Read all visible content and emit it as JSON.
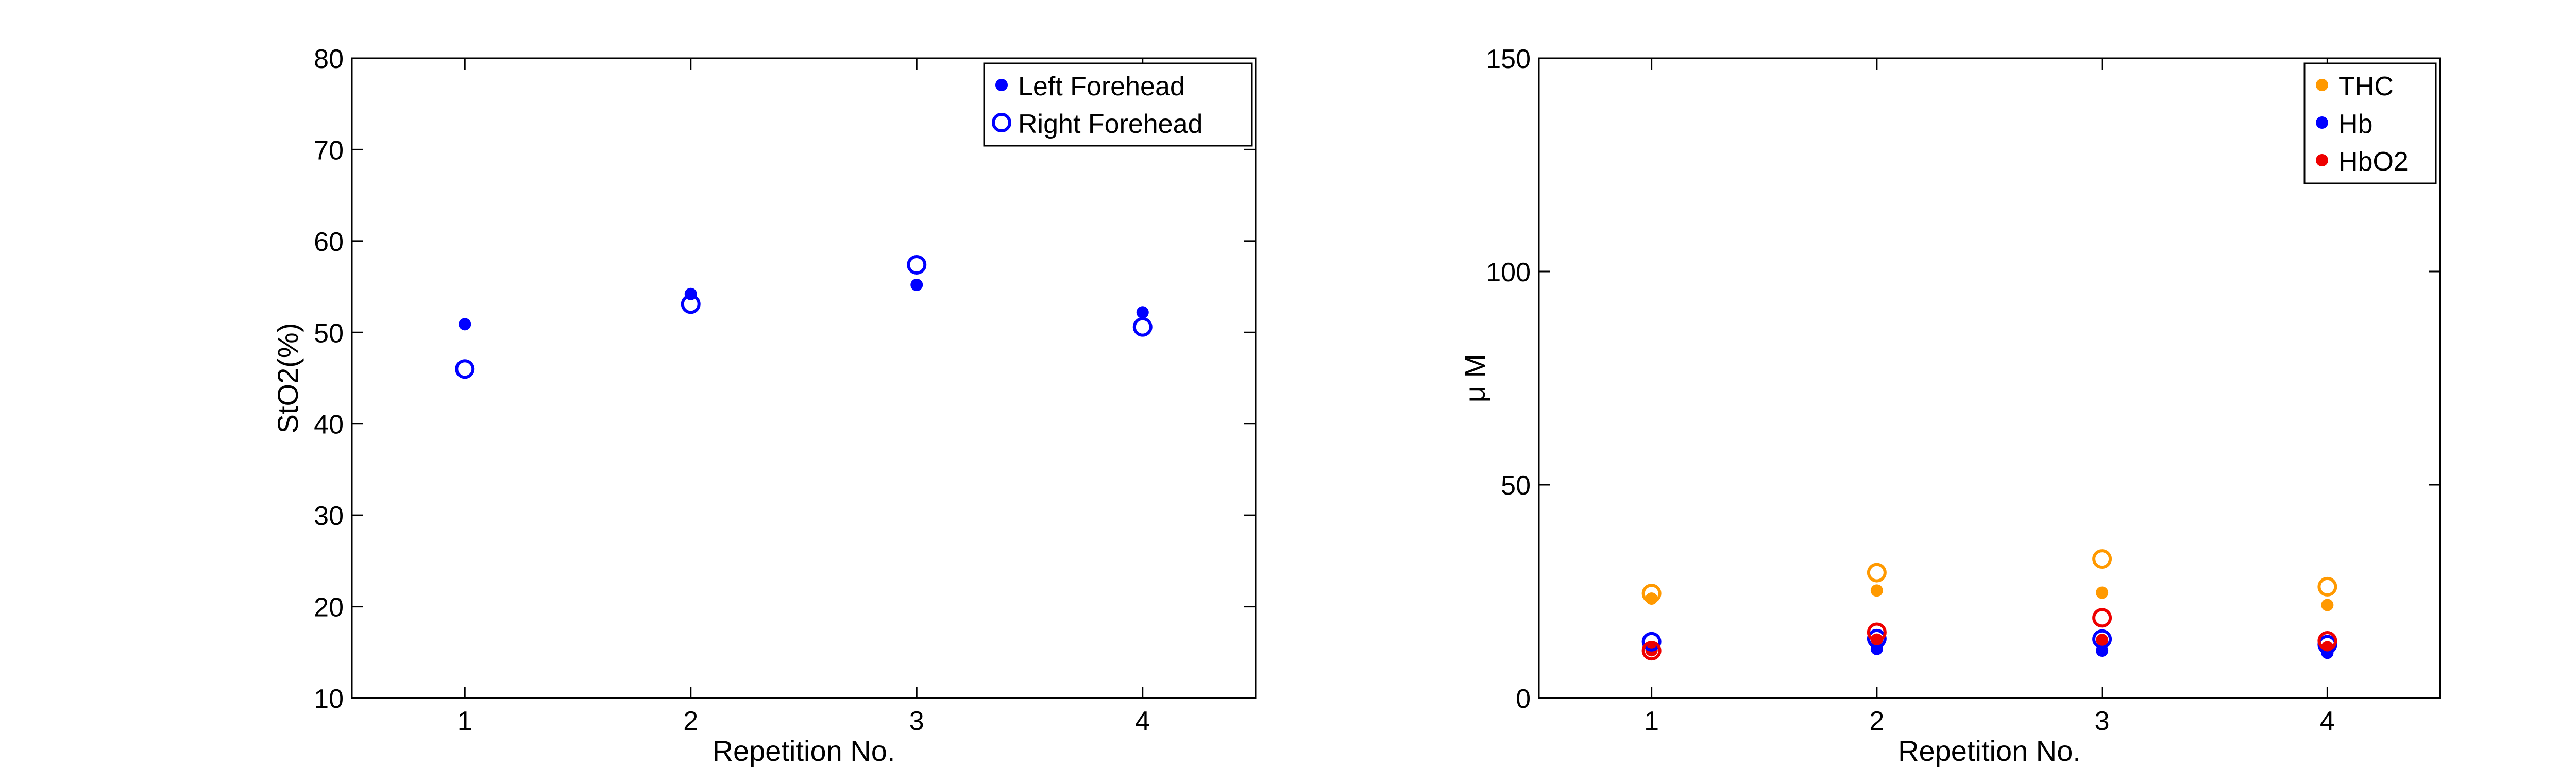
{
  "chart_data": [
    {
      "type": "scatter",
      "title": "",
      "xlabel": "Repetition No.",
      "ylabel": "StO2(%)",
      "xlim": [
        0.5,
        4.5
      ],
      "ylim": [
        10,
        80
      ],
      "xticks": [
        1,
        2,
        3,
        4
      ],
      "yticks": [
        10,
        20,
        30,
        40,
        50,
        60,
        70,
        80
      ],
      "grid": true,
      "legend": "top-right",
      "series": [
        {
          "name": "Left Forehead",
          "marker": "filled",
          "color": "#0000ff",
          "x": [
            1,
            2,
            3,
            4
          ],
          "y": [
            50.9,
            54.2,
            55.2,
            52.2
          ]
        },
        {
          "name": "Right Forehead",
          "marker": "open",
          "color": "#0000ff",
          "x": [
            1,
            2,
            3,
            4
          ],
          "y": [
            46.0,
            53.1,
            57.4,
            50.6
          ]
        }
      ]
    },
    {
      "type": "scatter",
      "title": "",
      "xlabel": "Repetition No.",
      "ylabel": "μ M",
      "xlim": [
        0.5,
        4.5
      ],
      "ylim": [
        0,
        150
      ],
      "xticks": [
        1,
        2,
        3,
        4
      ],
      "yticks": [
        0,
        50,
        100,
        150
      ],
      "grid": true,
      "legend": "top-right",
      "series": [
        {
          "name": "THC",
          "marker": "filled",
          "color": "#ff9900",
          "x": [
            1,
            2,
            3,
            4
          ],
          "y": [
            23.3,
            25.2,
            24.7,
            21.8
          ]
        },
        {
          "name": "Hb",
          "marker": "filled",
          "color": "#0000ff",
          "x": [
            1,
            2,
            3,
            4
          ],
          "y": [
            11.8,
            11.5,
            11.1,
            10.6
          ]
        },
        {
          "name": "HbO2",
          "marker": "filled",
          "color": "#ee0000",
          "x": [
            1,
            2,
            3,
            4
          ],
          "y": [
            11.2,
            13.7,
            13.6,
            11.9
          ]
        },
        {
          "name": "",
          "marker": "open",
          "color": "#ff9900",
          "x": [
            1,
            2,
            3,
            4
          ],
          "y": [
            24.5,
            29.4,
            32.6,
            26.1
          ]
        },
        {
          "name": "",
          "marker": "open",
          "color": "#0000ff",
          "x": [
            1,
            2,
            3,
            4
          ],
          "y": [
            13.2,
            13.9,
            13.8,
            12.5
          ]
        },
        {
          "name": "",
          "marker": "open",
          "color": "#ee0000",
          "x": [
            1,
            2,
            3,
            4
          ],
          "y": [
            11.1,
            15.4,
            18.8,
            13.4
          ]
        }
      ]
    }
  ]
}
